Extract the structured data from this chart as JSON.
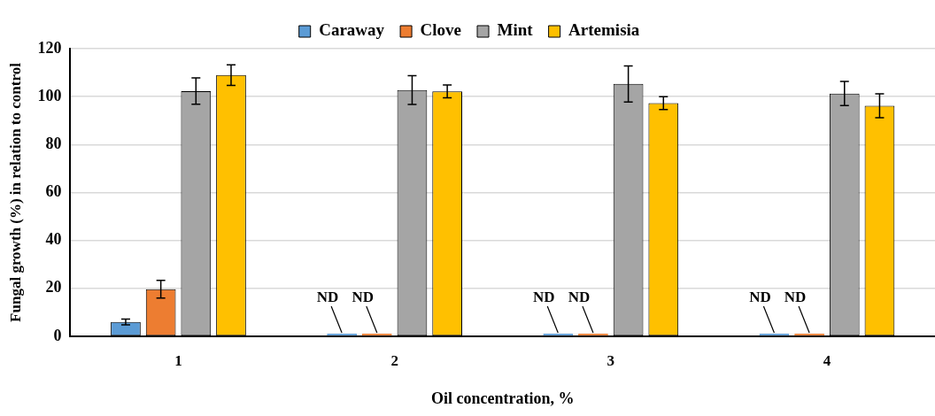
{
  "chart_data": {
    "type": "bar",
    "xlabel": "Oil concentration, %",
    "ylabel": "Fungal growth (%) in relation to control",
    "categories": [
      "1",
      "2",
      "3",
      "4"
    ],
    "series": [
      {
        "name": "Caraway",
        "color": "#5b9bd5",
        "values": [
          6,
          0,
          0,
          0
        ],
        "errors": [
          1.2,
          null,
          null,
          null
        ],
        "value_labels": [
          null,
          "ND",
          "ND",
          "ND"
        ]
      },
      {
        "name": "Clove",
        "color": "#ed7d31",
        "values": [
          19.7,
          0,
          0,
          0
        ],
        "errors": [
          3.7,
          null,
          null,
          null
        ],
        "value_labels": [
          null,
          "ND",
          "ND",
          "ND"
        ]
      },
      {
        "name": "Mint",
        "color": "#a5a5a5",
        "values": [
          102.3,
          102.7,
          105.3,
          101.3
        ],
        "errors": [
          5.5,
          6,
          7.5,
          5
        ]
      },
      {
        "name": "Artemisia",
        "color": "#ffc000",
        "values": [
          109,
          102.2,
          97.3,
          96.2
        ],
        "errors": [
          4.3,
          2.7,
          2.7,
          5
        ]
      }
    ],
    "ylim": [
      0,
      120
    ],
    "yticks": [
      0,
      20,
      40,
      60,
      80,
      100,
      120
    ],
    "grid": "y",
    "legend": "top"
  }
}
